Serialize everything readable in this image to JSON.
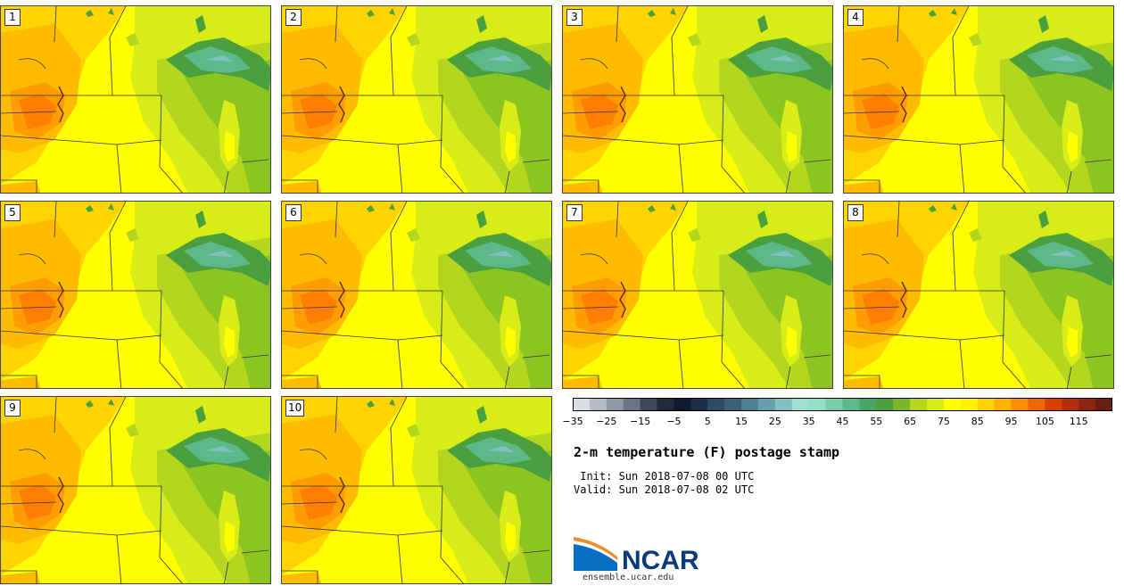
{
  "panels": [
    {
      "label": "1"
    },
    {
      "label": "2"
    },
    {
      "label": "3"
    },
    {
      "label": "4"
    },
    {
      "label": "5"
    },
    {
      "label": "6"
    },
    {
      "label": "7"
    },
    {
      "label": "8"
    },
    {
      "label": "9"
    },
    {
      "label": "10"
    }
  ],
  "colorbar": {
    "colors": [
      "#d8dde5",
      "#b6bcc7",
      "#8f96a6",
      "#6b7387",
      "#3f4659",
      "#232a3c",
      "#0f1a2e",
      "#1d2e46",
      "#2c4a63",
      "#3b6078",
      "#4f7f92",
      "#66a0ac",
      "#82c0c0",
      "#a0ddd5",
      "#8fe0c9",
      "#79ccab",
      "#5eb98a",
      "#47a567",
      "#4a9f3f",
      "#7ab82a",
      "#b4d61e",
      "#d8ec17",
      "#ffff00",
      "#fff200",
      "#ffd200",
      "#ffb100",
      "#ff8c00",
      "#f06600",
      "#d83f00",
      "#b62c0a",
      "#8c2410",
      "#6a1c12"
    ],
    "tick_labels": [
      "−35",
      "−25",
      "−15",
      "−5",
      "5",
      "15",
      "25",
      "35",
      "45",
      "55",
      "65",
      "75",
      "85",
      "95",
      "105",
      "115"
    ]
  },
  "title": "2-m temperature (F) postage stamp",
  "init": " Init: Sun 2018-07-08 00 UTC",
  "valid": "Valid: Sun 2018-07-08 02 UTC",
  "logo": {
    "text": "NCAR",
    "url": "ensemble.ucar.edu"
  }
}
